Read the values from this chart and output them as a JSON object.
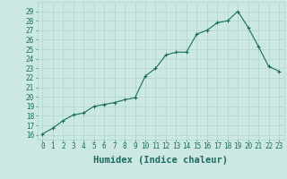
{
  "x": [
    0,
    1,
    2,
    3,
    4,
    5,
    6,
    7,
    8,
    9,
    10,
    11,
    12,
    13,
    14,
    15,
    16,
    17,
    18,
    19,
    20,
    21,
    22,
    23
  ],
  "y": [
    16.1,
    16.7,
    17.5,
    18.1,
    18.3,
    19.0,
    19.2,
    19.4,
    19.7,
    19.9,
    22.2,
    23.0,
    24.4,
    24.7,
    24.7,
    26.6,
    27.0,
    27.8,
    28.0,
    29.0,
    27.3,
    25.3,
    23.2,
    22.7
  ],
  "line_color": "#1a6b5a",
  "marker": "+",
  "markersize": 3.5,
  "linewidth": 0.8,
  "markeredgewidth": 0.8,
  "bg_color": "#cce8e4",
  "grid_color": "#b0d4cf",
  "xlabel": "Humidex (Indice chaleur)",
  "xlim": [
    -0.5,
    23.5
  ],
  "ylim": [
    15.5,
    30.0
  ],
  "yticks": [
    16,
    17,
    18,
    19,
    20,
    21,
    22,
    23,
    24,
    25,
    26,
    27,
    28,
    29
  ],
  "xticks": [
    0,
    1,
    2,
    3,
    4,
    5,
    6,
    7,
    8,
    9,
    10,
    11,
    12,
    13,
    14,
    15,
    16,
    17,
    18,
    19,
    20,
    21,
    22,
    23
  ],
  "tick_fontsize": 5.5,
  "xlabel_fontsize": 7.5,
  "tick_color": "#1a6b5a",
  "xlabel_color": "#1a6b5a"
}
